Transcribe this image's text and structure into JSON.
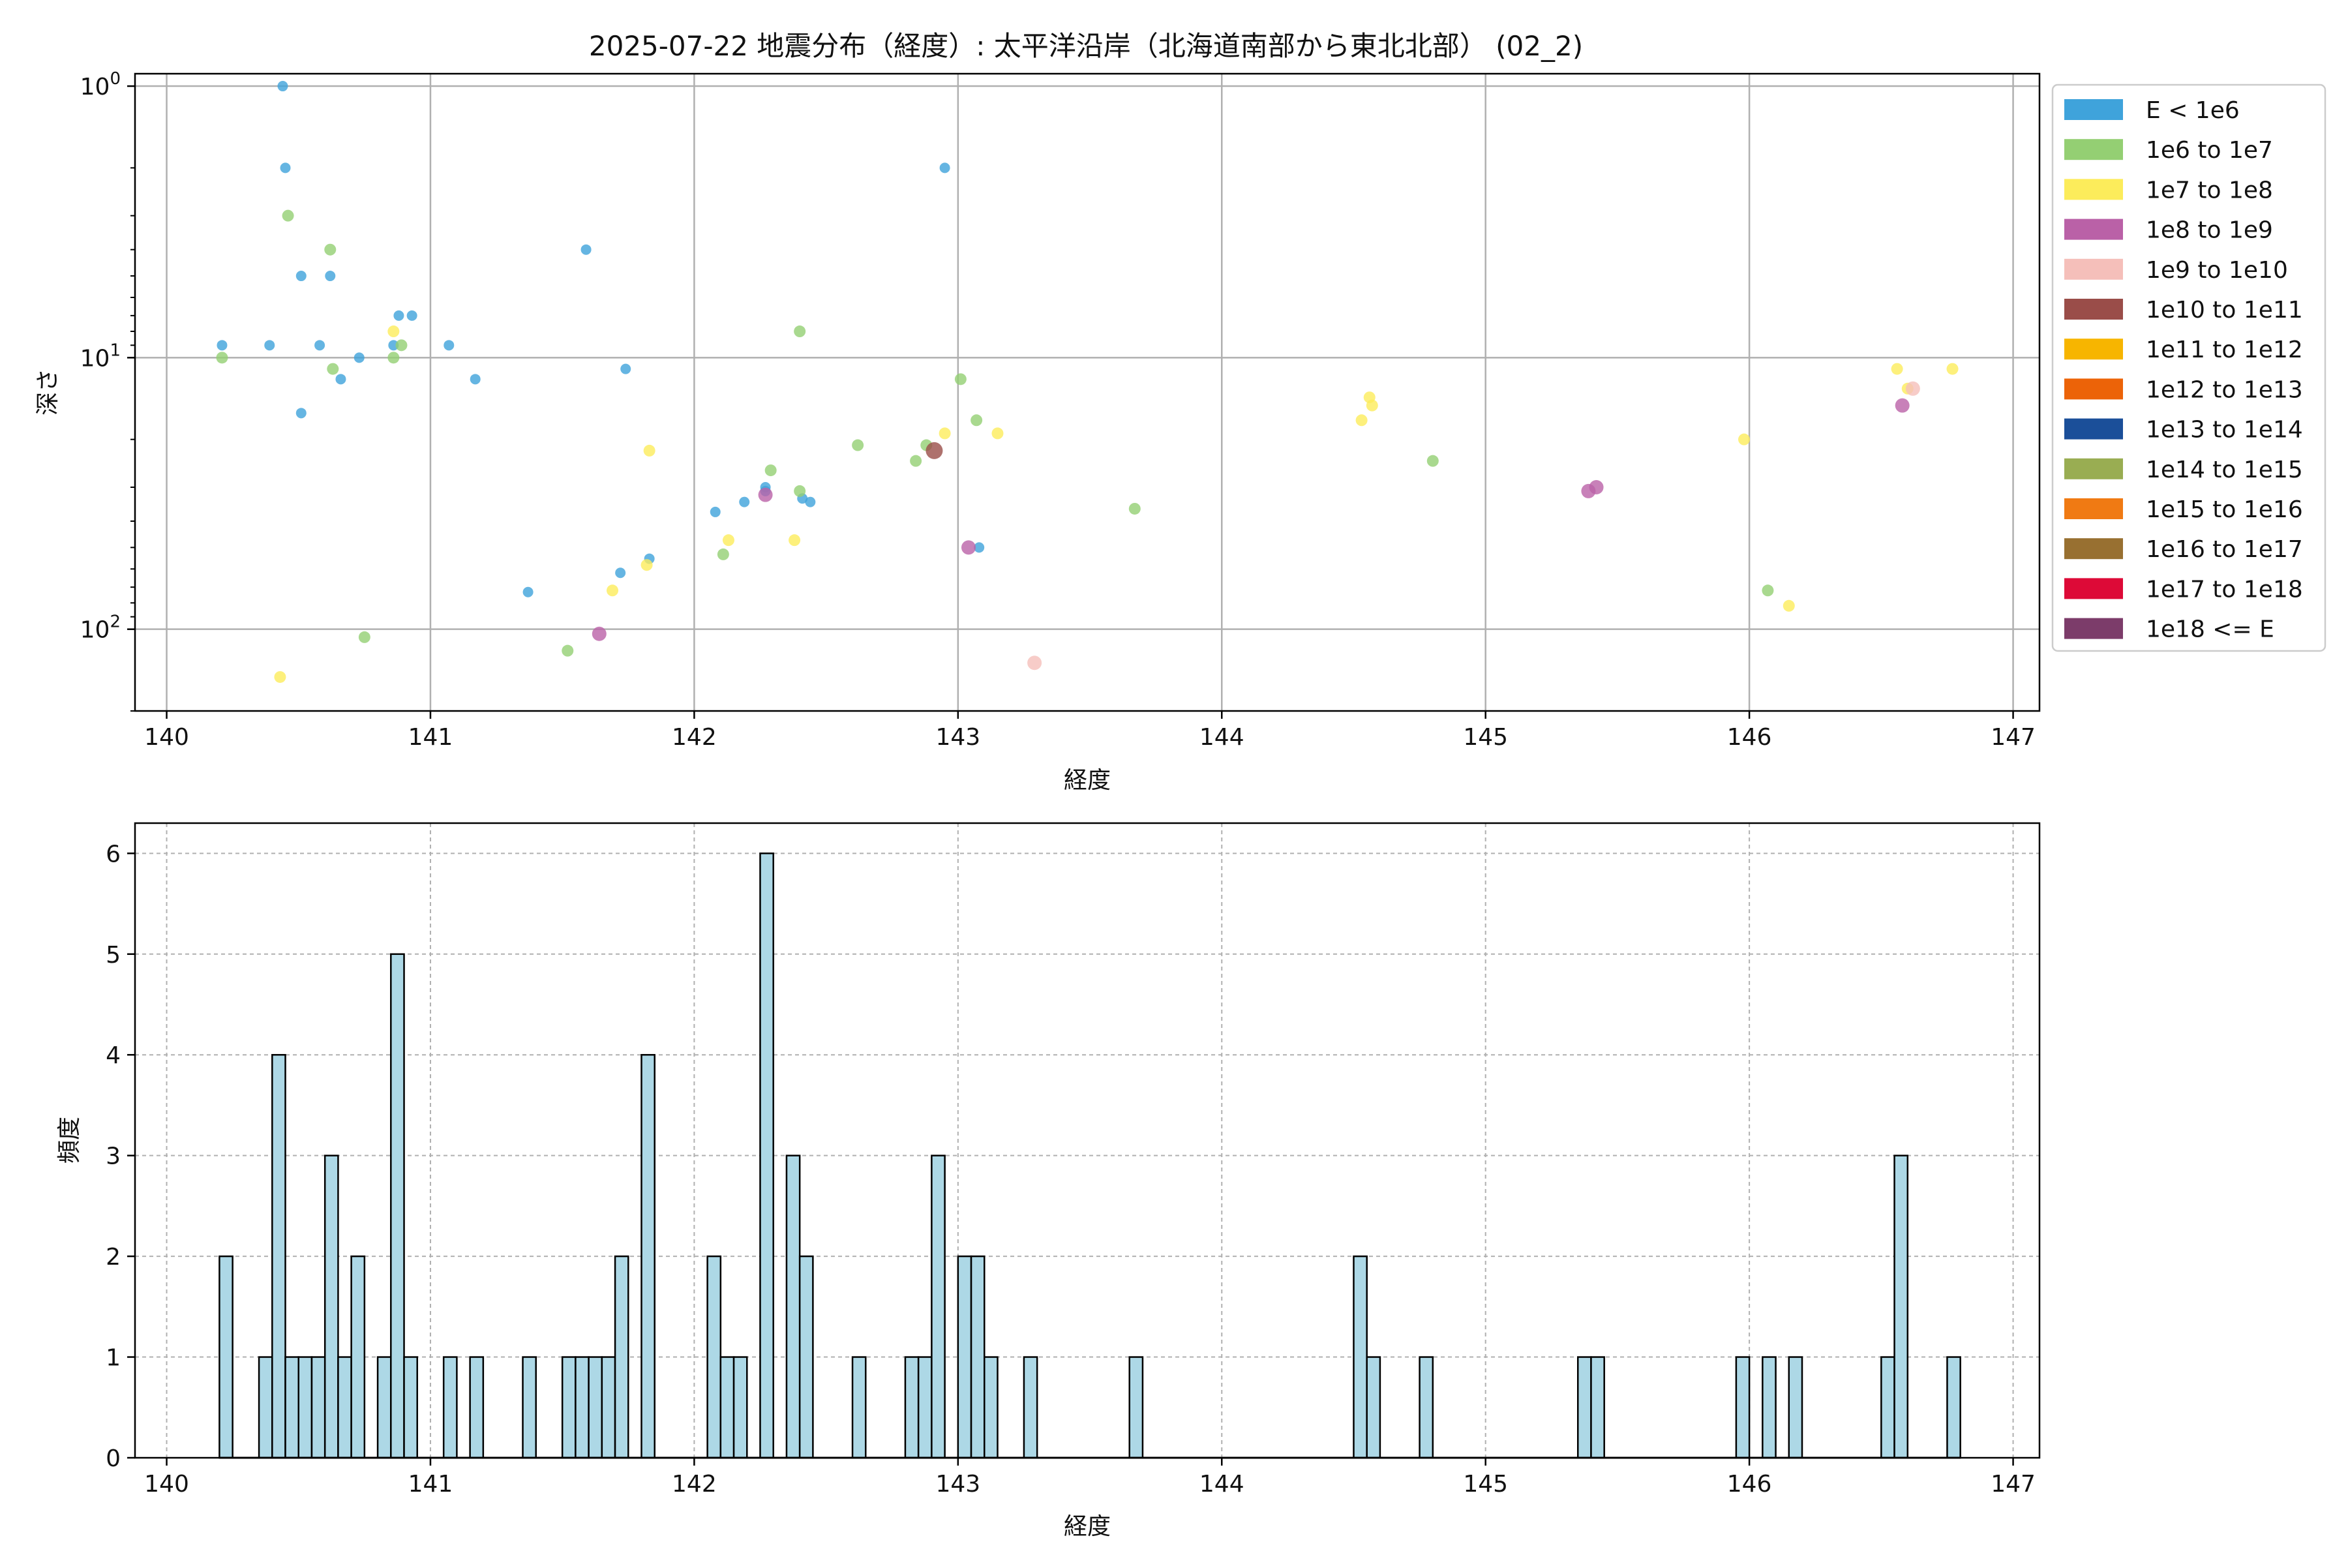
{
  "chart_data": [
    {
      "type": "scatter",
      "title": "2025-07-22 地震分布（経度）: 太平洋沿岸（北海道南部から東北北部） (02_2)",
      "xlabel": "経度",
      "ylabel": "深さ",
      "xlim": [
        139.88,
        147.1
      ],
      "ylim": [
        200,
        0.9
      ],
      "y_scale": "log",
      "y_inverted": true,
      "grid": true,
      "legend_position": "outside-right",
      "x_ticks": [
        "140",
        "141",
        "142",
        "143",
        "144",
        "145",
        "146",
        "147"
      ],
      "y_ticks": [
        {
          "value": 1,
          "base": "10",
          "exp": "0"
        },
        {
          "value": 10,
          "base": "10",
          "exp": "1"
        },
        {
          "value": 100,
          "base": "10",
          "exp": "2"
        }
      ],
      "legend": [
        {
          "label": "E < 1e6",
          "color": "#3fa3db"
        },
        {
          "label": "1e6 to 1e7",
          "color": "#94cf73"
        },
        {
          "label": "1e7 to 1e8",
          "color": "#fcec5b"
        },
        {
          "label": "1e8 to 1e9",
          "color": "#ba61a7"
        },
        {
          "label": "1e9 to 1e10",
          "color": "#f5bfba"
        },
        {
          "label": "1e10 to 1e11",
          "color": "#9a4d49"
        },
        {
          "label": "1e11 to 1e12",
          "color": "#f7b500"
        },
        {
          "label": "1e12 to 1e13",
          "color": "#ec6308"
        },
        {
          "label": "1e13 to 1e14",
          "color": "#1b4f99"
        },
        {
          "label": "1e14 to 1e15",
          "color": "#99ad52"
        },
        {
          "label": "1e15 to 1e16",
          "color": "#f07a13"
        },
        {
          "label": "1e16 to 1e17",
          "color": "#987031"
        },
        {
          "label": "1e17 to 1e18",
          "color": "#dd0a37"
        },
        {
          "label": "1e18 <= E",
          "color": "#7c3c6a"
        }
      ],
      "points": [
        {
          "x": 140.44,
          "y": 1.0,
          "c": 0
        },
        {
          "x": 140.45,
          "y": 2.0,
          "c": 0
        },
        {
          "x": 140.51,
          "y": 5.0,
          "c": 0
        },
        {
          "x": 140.62,
          "y": 5.0,
          "c": 0
        },
        {
          "x": 140.21,
          "y": 9.0,
          "c": 0
        },
        {
          "x": 140.39,
          "y": 9.0,
          "c": 0
        },
        {
          "x": 140.58,
          "y": 9.0,
          "c": 0
        },
        {
          "x": 140.73,
          "y": 10.0,
          "c": 0
        },
        {
          "x": 140.66,
          "y": 12.0,
          "c": 0
        },
        {
          "x": 140.51,
          "y": 16.0,
          "c": 0
        },
        {
          "x": 140.86,
          "y": 9.0,
          "c": 0
        },
        {
          "x": 140.88,
          "y": 7.0,
          "c": 0
        },
        {
          "x": 140.93,
          "y": 7.0,
          "c": 0
        },
        {
          "x": 141.07,
          "y": 9.0,
          "c": 0
        },
        {
          "x": 141.17,
          "y": 12.0,
          "c": 0
        },
        {
          "x": 141.59,
          "y": 4.0,
          "c": 0
        },
        {
          "x": 141.74,
          "y": 11.0,
          "c": 0
        },
        {
          "x": 141.37,
          "y": 73.0,
          "c": 0
        },
        {
          "x": 141.72,
          "y": 62.0,
          "c": 0
        },
        {
          "x": 141.83,
          "y": 55.0,
          "c": 0
        },
        {
          "x": 142.08,
          "y": 37.0,
          "c": 0
        },
        {
          "x": 142.19,
          "y": 34.0,
          "c": 0
        },
        {
          "x": 142.27,
          "y": 30.0,
          "c": 0
        },
        {
          "x": 142.27,
          "y": 31.0,
          "c": 0
        },
        {
          "x": 142.41,
          "y": 33.0,
          "c": 0
        },
        {
          "x": 142.44,
          "y": 34.0,
          "c": 0
        },
        {
          "x": 142.95,
          "y": 2.0,
          "c": 0
        },
        {
          "x": 143.08,
          "y": 50.0,
          "c": 0
        },
        {
          "x": 140.46,
          "y": 3.0,
          "c": 1
        },
        {
          "x": 140.62,
          "y": 4.0,
          "c": 1
        },
        {
          "x": 140.21,
          "y": 10.0,
          "c": 1
        },
        {
          "x": 140.63,
          "y": 11.0,
          "c": 1
        },
        {
          "x": 140.86,
          "y": 10.0,
          "c": 1
        },
        {
          "x": 140.89,
          "y": 9.0,
          "c": 1
        },
        {
          "x": 140.75,
          "y": 107.0,
          "c": 1
        },
        {
          "x": 141.52,
          "y": 120.0,
          "c": 1
        },
        {
          "x": 142.11,
          "y": 53.0,
          "c": 1
        },
        {
          "x": 142.29,
          "y": 26.0,
          "c": 1
        },
        {
          "x": 142.4,
          "y": 8.0,
          "c": 1
        },
        {
          "x": 142.4,
          "y": 31.0,
          "c": 1
        },
        {
          "x": 142.62,
          "y": 21.0,
          "c": 1
        },
        {
          "x": 142.84,
          "y": 24.0,
          "c": 1
        },
        {
          "x": 142.88,
          "y": 21.0,
          "c": 1
        },
        {
          "x": 143.01,
          "y": 12.0,
          "c": 1
        },
        {
          "x": 143.07,
          "y": 17.0,
          "c": 1
        },
        {
          "x": 143.67,
          "y": 36.0,
          "c": 1
        },
        {
          "x": 144.8,
          "y": 24.0,
          "c": 1
        },
        {
          "x": 146.07,
          "y": 72.0,
          "c": 1
        },
        {
          "x": 140.43,
          "y": 150.0,
          "c": 2
        },
        {
          "x": 140.86,
          "y": 8.0,
          "c": 2
        },
        {
          "x": 141.83,
          "y": 22.0,
          "c": 2
        },
        {
          "x": 141.82,
          "y": 58.0,
          "c": 2
        },
        {
          "x": 141.69,
          "y": 72.0,
          "c": 2
        },
        {
          "x": 142.13,
          "y": 47.0,
          "c": 2
        },
        {
          "x": 142.38,
          "y": 47.0,
          "c": 2
        },
        {
          "x": 142.95,
          "y": 19.0,
          "c": 2
        },
        {
          "x": 143.15,
          "y": 19.0,
          "c": 2
        },
        {
          "x": 144.53,
          "y": 17.0,
          "c": 2
        },
        {
          "x": 144.56,
          "y": 14.0,
          "c": 2
        },
        {
          "x": 144.57,
          "y": 15.0,
          "c": 2
        },
        {
          "x": 145.98,
          "y": 20.0,
          "c": 2
        },
        {
          "x": 146.15,
          "y": 82.0,
          "c": 2
        },
        {
          "x": 146.56,
          "y": 11.0,
          "c": 2
        },
        {
          "x": 146.6,
          "y": 13.0,
          "c": 2
        },
        {
          "x": 146.77,
          "y": 11.0,
          "c": 2
        },
        {
          "x": 141.64,
          "y": 104.0,
          "c": 3
        },
        {
          "x": 142.27,
          "y": 32.0,
          "c": 3
        },
        {
          "x": 143.04,
          "y": 50.0,
          "c": 3
        },
        {
          "x": 145.39,
          "y": 31.0,
          "c": 3
        },
        {
          "x": 145.42,
          "y": 30.0,
          "c": 3
        },
        {
          "x": 146.58,
          "y": 15.0,
          "c": 3
        },
        {
          "x": 143.29,
          "y": 133.0,
          "c": 4
        },
        {
          "x": 146.62,
          "y": 13.0,
          "c": 4
        },
        {
          "x": 142.91,
          "y": 22.0,
          "c": 5
        }
      ]
    },
    {
      "type": "bar",
      "title": "",
      "xlabel": "経度",
      "ylabel": "頻度",
      "xlim": [
        139.88,
        147.1
      ],
      "ylim": [
        0,
        6.3
      ],
      "bin_width": 0.05,
      "bar_color": "#add8e6",
      "grid": true,
      "x_ticks": [
        "140",
        "141",
        "142",
        "143",
        "144",
        "145",
        "146",
        "147"
      ],
      "y_ticks": [
        "0",
        "1",
        "2",
        "3",
        "4",
        "5",
        "6"
      ],
      "bins": [
        {
          "x": 140.2,
          "count": 2
        },
        {
          "x": 140.35,
          "count": 1
        },
        {
          "x": 140.4,
          "count": 4
        },
        {
          "x": 140.45,
          "count": 1
        },
        {
          "x": 140.5,
          "count": 1
        },
        {
          "x": 140.55,
          "count": 1
        },
        {
          "x": 140.6,
          "count": 3
        },
        {
          "x": 140.65,
          "count": 1
        },
        {
          "x": 140.7,
          "count": 2
        },
        {
          "x": 140.8,
          "count": 1
        },
        {
          "x": 140.85,
          "count": 5
        },
        {
          "x": 140.9,
          "count": 1
        },
        {
          "x": 141.05,
          "count": 1
        },
        {
          "x": 141.15,
          "count": 1
        },
        {
          "x": 141.35,
          "count": 1
        },
        {
          "x": 141.5,
          "count": 1
        },
        {
          "x": 141.55,
          "count": 1
        },
        {
          "x": 141.6,
          "count": 1
        },
        {
          "x": 141.65,
          "count": 1
        },
        {
          "x": 141.7,
          "count": 2
        },
        {
          "x": 141.8,
          "count": 4
        },
        {
          "x": 142.05,
          "count": 2
        },
        {
          "x": 142.1,
          "count": 1
        },
        {
          "x": 142.15,
          "count": 1
        },
        {
          "x": 142.25,
          "count": 6
        },
        {
          "x": 142.35,
          "count": 3
        },
        {
          "x": 142.4,
          "count": 2
        },
        {
          "x": 142.6,
          "count": 1
        },
        {
          "x": 142.8,
          "count": 1
        },
        {
          "x": 142.85,
          "count": 1
        },
        {
          "x": 142.9,
          "count": 3
        },
        {
          "x": 143.0,
          "count": 2
        },
        {
          "x": 143.05,
          "count": 2
        },
        {
          "x": 143.1,
          "count": 1
        },
        {
          "x": 143.25,
          "count": 1
        },
        {
          "x": 143.65,
          "count": 1
        },
        {
          "x": 144.5,
          "count": 2
        },
        {
          "x": 144.55,
          "count": 1
        },
        {
          "x": 144.75,
          "count": 1
        },
        {
          "x": 145.35,
          "count": 1
        },
        {
          "x": 145.4,
          "count": 1
        },
        {
          "x": 145.95,
          "count": 1
        },
        {
          "x": 146.05,
          "count": 1
        },
        {
          "x": 146.15,
          "count": 1
        },
        {
          "x": 146.5,
          "count": 1
        },
        {
          "x": 146.55,
          "count": 3
        },
        {
          "x": 146.75,
          "count": 1
        }
      ]
    }
  ]
}
